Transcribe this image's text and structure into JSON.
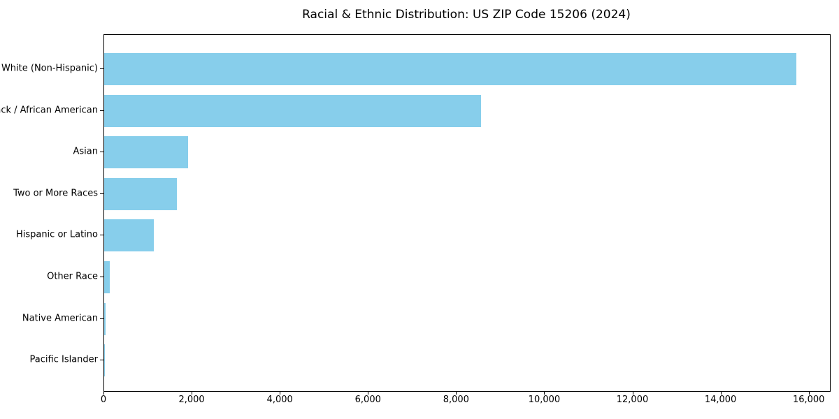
{
  "title": "Racial & Ethnic Distribution: US ZIP Code 15206 (2024)",
  "chart_data": {
    "type": "bar",
    "orientation": "horizontal",
    "title": "Racial & Ethnic Distribution: US ZIP Code 15206 (2024)",
    "xlabel": "",
    "ylabel": "",
    "categories": [
      "White (Non-Hispanic)",
      "Black / African American",
      "Asian",
      "Two or More Races",
      "Hispanic or Latino",
      "Other Race",
      "Native American",
      "Pacific Islander"
    ],
    "values": [
      15700,
      8550,
      1900,
      1650,
      1130,
      130,
      25,
      5
    ],
    "xlim": [
      0,
      16465
    ],
    "xticks": [
      0,
      2000,
      4000,
      6000,
      8000,
      10000,
      12000,
      14000,
      16000
    ],
    "xtick_labels": [
      "0",
      "2,000",
      "4,000",
      "6,000",
      "8,000",
      "10,000",
      "12,000",
      "14,000",
      "16,000"
    ],
    "bar_color": "#87CEEB",
    "background_color": "#FFFFFF",
    "axis_color": "#000000",
    "grid": false,
    "legend": "none"
  }
}
